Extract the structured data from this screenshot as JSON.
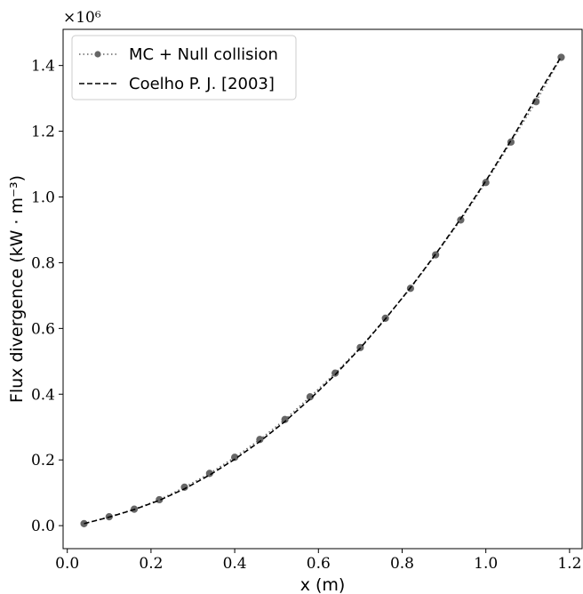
{
  "chart_data": {
    "type": "line",
    "title": "",
    "xlabel": "x (m)",
    "ylabel": "Flux divergence (kW · m⁻³)",
    "y_offset_label": "×10⁶",
    "xlim": [
      -0.01,
      1.23
    ],
    "ylim": [
      -0.07,
      1.51
    ],
    "xticks": [
      0.0,
      0.2,
      0.4,
      0.6,
      0.8,
      1.0,
      1.2
    ],
    "xtick_labels": [
      "0.0",
      "0.2",
      "0.4",
      "0.6",
      "0.8",
      "1.0",
      "1.2"
    ],
    "yticks": [
      0.0,
      0.2,
      0.4,
      0.6,
      0.8,
      1.0,
      1.2,
      1.4
    ],
    "ytick_labels": [
      "0.0",
      "0.2",
      "0.4",
      "0.6",
      "0.8",
      "1.0",
      "1.2",
      "1.4"
    ],
    "legend_position": "top-left",
    "grid": false,
    "x": [
      0.04,
      0.1,
      0.16,
      0.22,
      0.28,
      0.34,
      0.4,
      0.46,
      0.52,
      0.58,
      0.64,
      0.7,
      0.76,
      0.82,
      0.88,
      0.94,
      1.0,
      1.06,
      1.12,
      1.18
    ],
    "series": [
      {
        "name": "MC + Null collision",
        "style": "dotted-markers",
        "color": "#666666",
        "values": [
          0.006,
          0.027,
          0.05,
          0.079,
          0.117,
          0.159,
          0.208,
          0.262,
          0.323,
          0.392,
          0.464,
          0.542,
          0.631,
          0.722,
          0.824,
          0.93,
          1.044,
          1.167,
          1.29,
          1.425
        ]
      },
      {
        "name": "Coelho P. J. [2003]",
        "style": "dashed",
        "color": "#000000",
        "values": [
          0.006,
          0.026,
          0.049,
          0.077,
          0.112,
          0.154,
          0.202,
          0.256,
          0.317,
          0.385,
          0.459,
          0.54,
          0.629,
          0.724,
          0.826,
          0.934,
          1.049,
          1.172,
          1.302,
          1.427
        ]
      }
    ]
  }
}
